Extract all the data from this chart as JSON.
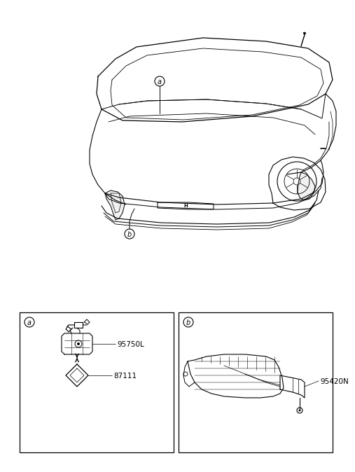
{
  "bg_color": "#ffffff",
  "part_label_1": "95750L",
  "part_label_2": "87111",
  "part_label_3": "95420N",
  "label_a": "a",
  "label_b": "b"
}
